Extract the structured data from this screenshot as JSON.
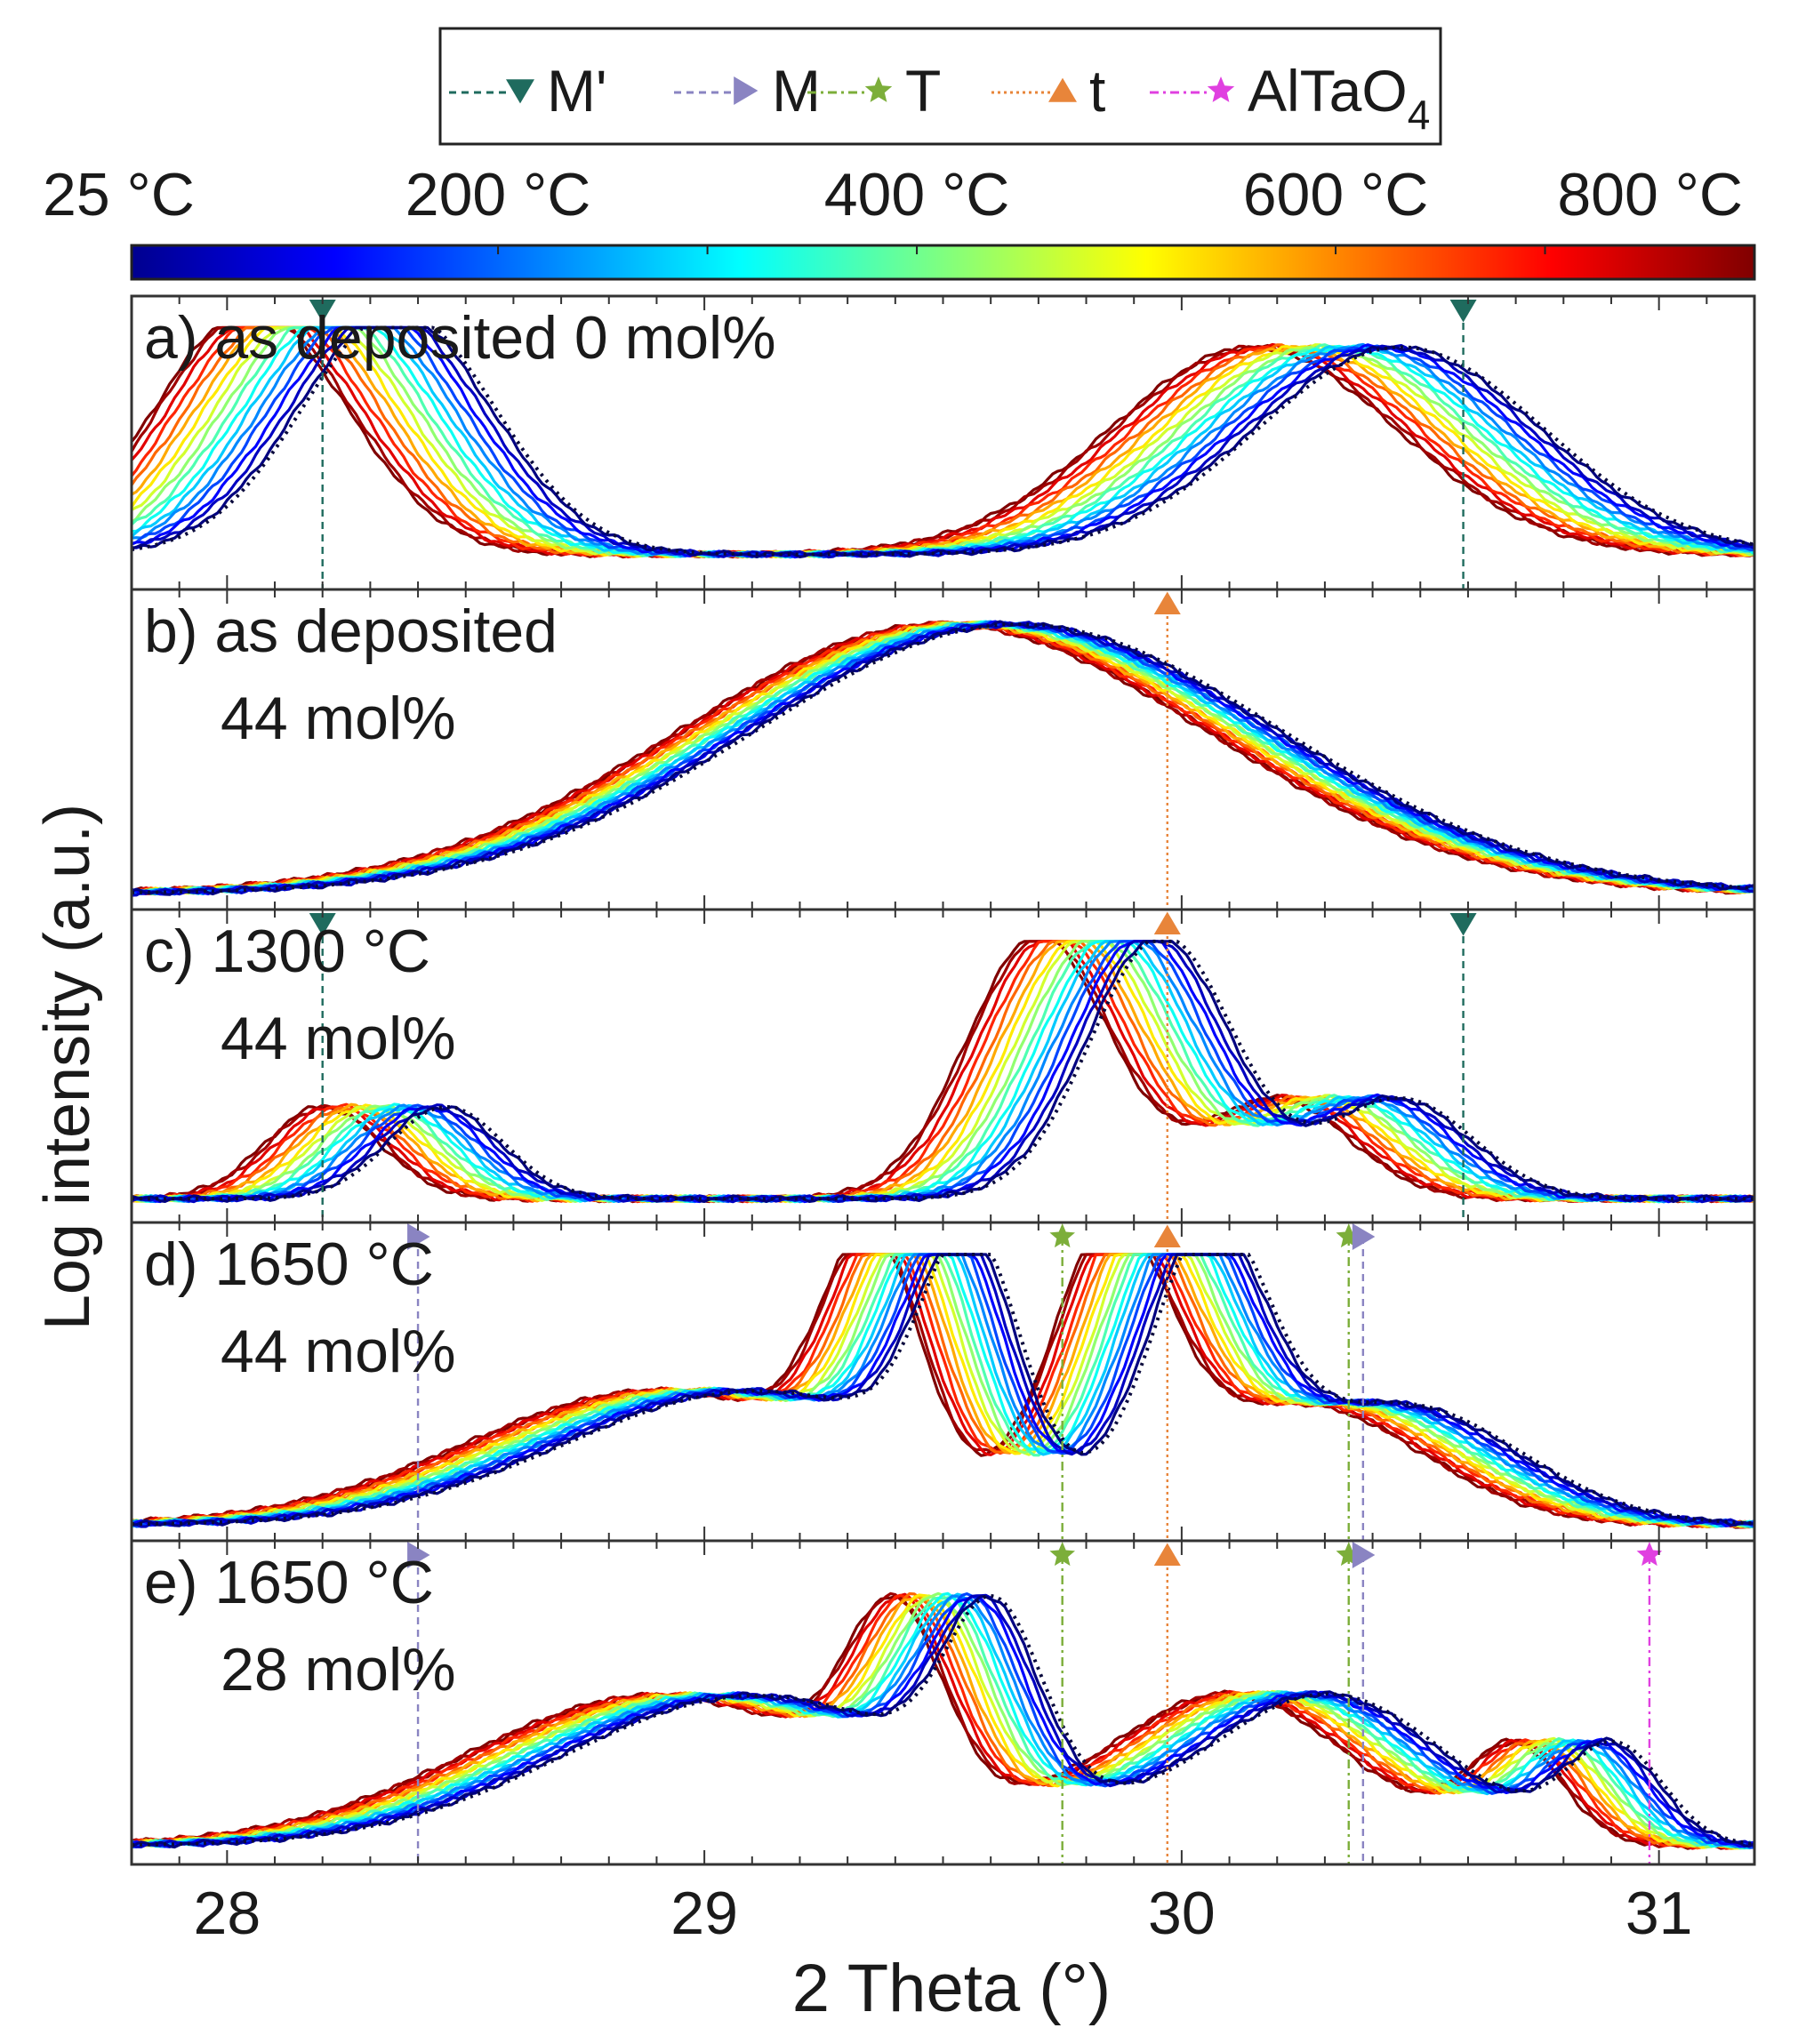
{
  "chart_data": {
    "type": "line",
    "xlabel": "2 Theta (°)",
    "ylabel": "Log intensity (a.u.)",
    "xlim": [
      27.8,
      31.2
    ],
    "x_ticks": [
      28,
      29,
      30,
      31
    ],
    "x_tick_labels": [
      "28",
      "29",
      "30",
      "31"
    ],
    "legend": {
      "placement": "top-center",
      "entries": [
        {
          "label": "M'",
          "marker": "triangle-down",
          "line": "dashed",
          "color": "#1f6b5e"
        },
        {
          "label": "M",
          "marker": "triangle-right",
          "line": "dashed",
          "color": "#8a84c2"
        },
        {
          "label": "T",
          "marker": "star",
          "line": "dash-dot",
          "color": "#7cae3a"
        },
        {
          "label": "t",
          "marker": "triangle-up",
          "line": "dotted",
          "color": "#e8853a"
        },
        {
          "label": "AlTaO",
          "subscript": "4",
          "marker": "star",
          "line": "dash-dot",
          "color": "#e040e0"
        }
      ]
    },
    "colorbar": {
      "min": 25,
      "max": 800,
      "colormap": "jet",
      "labels": [
        "25 °C",
        "200 °C",
        "400 °C",
        "600 °C",
        "800 °C"
      ],
      "label_values": [
        25,
        200,
        400,
        600,
        800
      ],
      "extra_tick_values": [
        300,
        700
      ]
    },
    "temperatures": [
      25,
      75,
      125,
      175,
      225,
      275,
      325,
      375,
      425,
      475,
      525,
      575,
      625,
      675,
      725,
      775,
      800
    ],
    "panels": [
      {
        "id": "a",
        "label": "a) as deposited 0 mol%",
        "label_lines": [
          "a) as deposited 0 mol%"
        ],
        "baseline": 0.1,
        "peaks_25C": [
          {
            "center": 28.35,
            "height": 1.0,
            "width": 0.2
          },
          {
            "center": 30.45,
            "height": 0.85,
            "width": 0.3
          }
        ],
        "shift_at_800C": -0.3,
        "markers": [
          {
            "phase": "M'",
            "x": 28.2
          },
          {
            "phase": "M'",
            "x": 30.59
          }
        ]
      },
      {
        "id": "b",
        "label": "b) as deposited 44 mol%",
        "label_lines": [
          "b) as deposited",
          "44 mol%"
        ],
        "baseline": 0.02,
        "peaks_25C": [
          {
            "center": 29.65,
            "height": 1.0,
            "width": 0.55
          }
        ],
        "shift_at_800C": -0.15,
        "markers": [
          {
            "phase": "t",
            "x": 29.97
          }
        ]
      },
      {
        "id": "c",
        "label": "c) 1300 °C 44 mol%",
        "label_lines": [
          "c) 1300 °C",
          "44 mol%"
        ],
        "baseline": 0.05,
        "peaks_25C": [
          {
            "center": 28.45,
            "height": 0.35,
            "width": 0.12
          },
          {
            "center": 29.95,
            "height": 1.0,
            "width": 0.15
          },
          {
            "center": 30.45,
            "height": 0.38,
            "width": 0.15
          }
        ],
        "shift_at_800C": -0.25,
        "markers": [
          {
            "phase": "M'",
            "x": 28.2
          },
          {
            "phase": "t",
            "x": 29.97
          },
          {
            "phase": "M'",
            "x": 30.59
          }
        ]
      },
      {
        "id": "d",
        "label": "d) 1650 °C 44 mol%",
        "label_lines": [
          "d) 1650 °C",
          "44 mol%"
        ],
        "baseline": 0.02,
        "peaks_25C": [
          {
            "center": 29.1,
            "height": 0.5,
            "width": 0.4
          },
          {
            "center": 29.55,
            "height": 0.85,
            "width": 0.1
          },
          {
            "center": 30.05,
            "height": 1.0,
            "width": 0.12
          },
          {
            "center": 30.45,
            "height": 0.45,
            "width": 0.25
          }
        ],
        "shift_at_800C": -0.2,
        "markers": [
          {
            "phase": "M",
            "x": 28.4
          },
          {
            "phase": "T",
            "x": 29.75
          },
          {
            "phase": "t",
            "x": 29.97
          },
          {
            "phase": "T",
            "x": 30.35
          },
          {
            "phase": "M",
            "x": 30.38
          }
        ]
      },
      {
        "id": "e",
        "label": "e) 1650 °C 28 mol%",
        "label_lines": [
          "e) 1650 °C",
          "28 mol%"
        ],
        "baseline": 0.03,
        "peaks_25C": [
          {
            "center": 29.1,
            "height": 0.55,
            "width": 0.4
          },
          {
            "center": 29.6,
            "height": 0.65,
            "width": 0.1
          },
          {
            "center": 30.3,
            "height": 0.55,
            "width": 0.25
          },
          {
            "center": 30.9,
            "height": 0.35,
            "width": 0.1
          }
        ],
        "shift_at_800C": -0.2,
        "markers": [
          {
            "phase": "M",
            "x": 28.4
          },
          {
            "phase": "T",
            "x": 29.75
          },
          {
            "phase": "t",
            "x": 29.97
          },
          {
            "phase": "T",
            "x": 30.35
          },
          {
            "phase": "M",
            "x": 30.38
          },
          {
            "phase": "AlTaO4",
            "x": 30.98
          }
        ]
      }
    ]
  }
}
